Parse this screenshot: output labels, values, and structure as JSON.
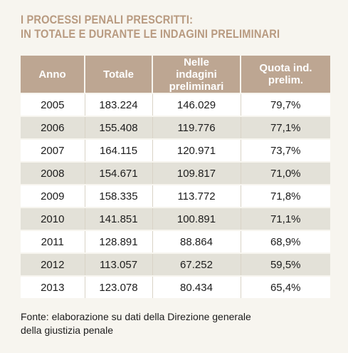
{
  "title_line1": "I PROCESSI PENALI PRESCRITTI:",
  "title_line2": "IN TOTALE E DURANTE LE INDAGINI PRELIMINARI",
  "chart_data": {
    "type": "table",
    "columns": [
      "Anno",
      "Totale",
      "Nelle indagini preliminari",
      "Quota ind. prelim."
    ],
    "rows": [
      [
        "2005",
        "183.224",
        "146.029",
        "79,7%"
      ],
      [
        "2006",
        "155.408",
        "119.776",
        "77,1%"
      ],
      [
        "2007",
        "164.115",
        "120.971",
        "73,7%"
      ],
      [
        "2008",
        "154.671",
        "109.817",
        "71,0%"
      ],
      [
        "2009",
        "158.335",
        "113.772",
        "71,8%"
      ],
      [
        "2010",
        "141.851",
        "100.891",
        "71,1%"
      ],
      [
        "2011",
        "128.891",
        "88.864",
        "68,9%"
      ],
      [
        "2012",
        "113.057",
        "67.252",
        "59,5%"
      ],
      [
        "2013",
        "123.078",
        "80.434",
        "65,4%"
      ]
    ]
  },
  "source_line1": "Fonte: elaborazione su dati della Direzione generale",
  "source_line2": "della giustizia penale"
}
